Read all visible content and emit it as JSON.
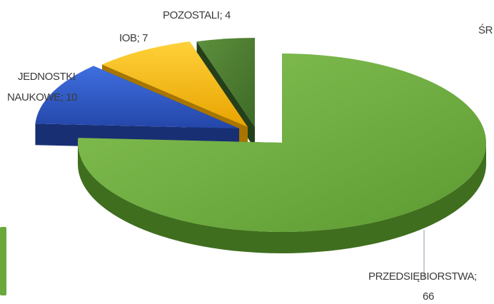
{
  "chart_data": {
    "type": "pie",
    "style": "3d-exploded",
    "title": "",
    "slices": [
      {
        "label": "PRZEDSIĘBIORSTWA",
        "value": 66,
        "text_line1": "PRZEDSIĘBIORSTWA;",
        "text_line2": "66",
        "color": "#6aa83c",
        "side_color": "#3f6e1e"
      },
      {
        "label": "JEDNOSTKI NAUKOWE",
        "value": 10,
        "text_line1": "JEDNOSTKI",
        "text_line2": "NAUKOWE; 10",
        "color": "#2f57c0",
        "side_color": "#182f74"
      },
      {
        "label": "IOB",
        "value": 7,
        "text_line1": "IOB; 7",
        "color": "#f2b400",
        "side_color": "#a77500"
      },
      {
        "label": "POZOSTALI",
        "value": 4,
        "text_line1": "POZOSTALI; 4",
        "color": "#4a7a32",
        "side_color": "#23401a"
      }
    ],
    "cropped_text": "ŚR",
    "legend_swatch_color": "#6aa83c"
  }
}
